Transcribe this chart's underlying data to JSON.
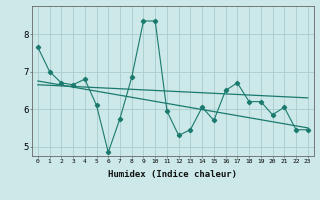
{
  "xlabel": "Humidex (Indice chaleur)",
  "ylabel": "",
  "bg_color": "#cce8e8",
  "grid_color": "#aacccc",
  "line_color": "#1a7a6e",
  "x_ticks": [
    0,
    1,
    2,
    3,
    4,
    5,
    6,
    7,
    8,
    9,
    10,
    11,
    12,
    13,
    14,
    15,
    16,
    17,
    18,
    19,
    20,
    21,
    22,
    23
  ],
  "ylim": [
    4.75,
    8.75
  ],
  "xlim": [
    -0.5,
    23.5
  ],
  "series1_x": [
    0,
    1,
    2,
    3,
    4,
    5,
    6,
    7,
    8,
    9,
    10,
    11,
    12,
    13,
    14,
    15,
    16,
    17,
    18,
    19,
    20,
    21,
    22,
    23
  ],
  "series1_y": [
    7.65,
    7.0,
    6.7,
    6.65,
    6.8,
    6.1,
    4.85,
    5.75,
    6.85,
    8.35,
    8.35,
    5.95,
    5.3,
    5.45,
    6.05,
    5.7,
    6.5,
    6.7,
    6.2,
    6.2,
    5.85,
    6.05,
    5.45,
    5.45
  ],
  "series2_x": [
    0,
    23
  ],
  "series2_y": [
    6.75,
    5.5
  ],
  "series3_x": [
    0,
    23
  ],
  "series3_y": [
    6.65,
    6.3
  ]
}
